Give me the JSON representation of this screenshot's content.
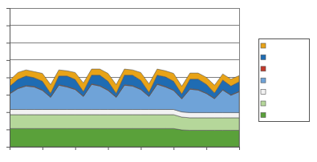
{
  "chart_data": {
    "type": "area",
    "stacked": true,
    "grid": true,
    "tick_labels": false,
    "legend": "right",
    "x": [
      0,
      0.25,
      0.5,
      0.75,
      1,
      1.25,
      1.5,
      1.75,
      2,
      2.25,
      2.5,
      2.75,
      3,
      3.25,
      3.5,
      3.75,
      4,
      4.25,
      4.5,
      4.75,
      5,
      5.25,
      5.5,
      5.75,
      6,
      6.25,
      6.5,
      6.75,
      7
    ],
    "xlim": [
      0,
      7
    ],
    "xticks": [
      0,
      1,
      2,
      3,
      4,
      5,
      6,
      7
    ],
    "ylim": [
      0,
      8
    ],
    "yticks": [
      0,
      1,
      2,
      3,
      4,
      5,
      6,
      7,
      8
    ],
    "series": [
      {
        "color": "#5aa13a",
        "values": [
          1.05,
          1.05,
          1.05,
          1.05,
          1.05,
          1.05,
          1.05,
          1.05,
          1.05,
          1.05,
          1.05,
          1.05,
          1.05,
          1.05,
          1.05,
          1.05,
          1.05,
          1.05,
          1.05,
          1.05,
          1.05,
          0.97,
          0.95,
          0.95,
          0.95,
          0.95,
          0.95,
          0.95,
          0.95
        ]
      },
      {
        "color": "#b5d79a",
        "values": [
          0.8,
          0.8,
          0.8,
          0.8,
          0.8,
          0.8,
          0.8,
          0.8,
          0.8,
          0.8,
          0.8,
          0.8,
          0.8,
          0.8,
          0.8,
          0.8,
          0.8,
          0.8,
          0.8,
          0.8,
          0.8,
          0.74,
          0.72,
          0.72,
          0.72,
          0.72,
          0.72,
          0.72,
          0.72
        ]
      },
      {
        "color": "#f2f2f2",
        "values": [
          0.3,
          0.3,
          0.3,
          0.3,
          0.3,
          0.3,
          0.3,
          0.3,
          0.3,
          0.3,
          0.3,
          0.3,
          0.3,
          0.3,
          0.3,
          0.3,
          0.3,
          0.3,
          0.3,
          0.3,
          0.3,
          0.3,
          0.3,
          0.3,
          0.3,
          0.3,
          0.3,
          0.3,
          0.3
        ]
      },
      {
        "color": "#6fa3d8",
        "values": [
          0.9,
          1.2,
          1.35,
          1.3,
          1.1,
          0.7,
          1.4,
          1.3,
          1.15,
          0.75,
          1.45,
          1.35,
          1.1,
          0.7,
          1.4,
          1.35,
          1.15,
          0.75,
          1.45,
          1.3,
          1.1,
          0.75,
          1.35,
          1.3,
          1.1,
          0.8,
          1.3,
          1.0,
          1.2
        ]
      },
      {
        "color": "#c0392b",
        "values": [
          0.03,
          0.03,
          0.03,
          0.03,
          0.03,
          0.03,
          0.03,
          0.03,
          0.03,
          0.03,
          0.03,
          0.03,
          0.03,
          0.03,
          0.03,
          0.03,
          0.03,
          0.03,
          0.03,
          0.03,
          0.03,
          0.03,
          0.03,
          0.03,
          0.03,
          0.03,
          0.03,
          0.03,
          0.03
        ]
      },
      {
        "color": "#1f6cb3",
        "values": [
          0.4,
          0.5,
          0.55,
          0.5,
          0.5,
          0.2,
          0.5,
          0.6,
          0.55,
          0.25,
          0.5,
          0.6,
          0.5,
          0.2,
          0.55,
          0.6,
          0.5,
          0.2,
          0.5,
          0.55,
          0.5,
          0.25,
          0.55,
          0.6,
          0.5,
          0.3,
          0.55,
          0.5,
          0.55
        ]
      },
      {
        "color": "#e8a317",
        "values": [
          0.35,
          0.4,
          0.35,
          0.35,
          0.45,
          0.5,
          0.35,
          0.3,
          0.4,
          0.5,
          0.35,
          0.35,
          0.45,
          0.5,
          0.35,
          0.3,
          0.45,
          0.5,
          0.35,
          0.35,
          0.45,
          0.45,
          0.35,
          0.35,
          0.4,
          0.45,
          0.35,
          0.4,
          0.35
        ]
      }
    ]
  }
}
